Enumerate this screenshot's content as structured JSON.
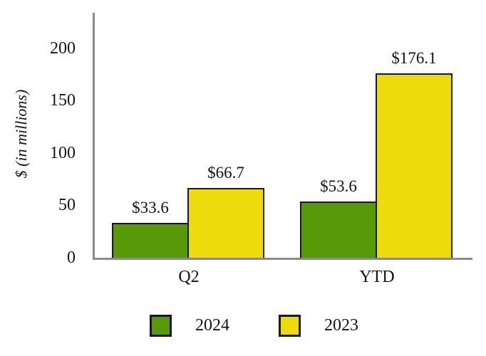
{
  "chart_data": {
    "type": "bar",
    "title": "",
    "xlabel": "",
    "ylabel": "$ (in millions)",
    "categories": [
      "Q2",
      "YTD"
    ],
    "series": [
      {
        "name": "2024",
        "color": "#579906",
        "values": [
          33.6,
          53.6
        ],
        "data_labels": [
          "$33.6",
          "$53.6"
        ]
      },
      {
        "name": "2023",
        "color": "#EDDB0E",
        "values": [
          66.7,
          176.1
        ],
        "data_labels": [
          "$66.7",
          "$176.1"
        ]
      }
    ],
    "yticks": [
      0,
      50,
      100,
      150,
      200
    ],
    "ylim": [
      0,
      234
    ],
    "grid": false,
    "legend_position": "bottom",
    "axis_color": "#8c8c8c",
    "bar_outline_color": "#1a1a1a",
    "text_color": "#141414"
  }
}
